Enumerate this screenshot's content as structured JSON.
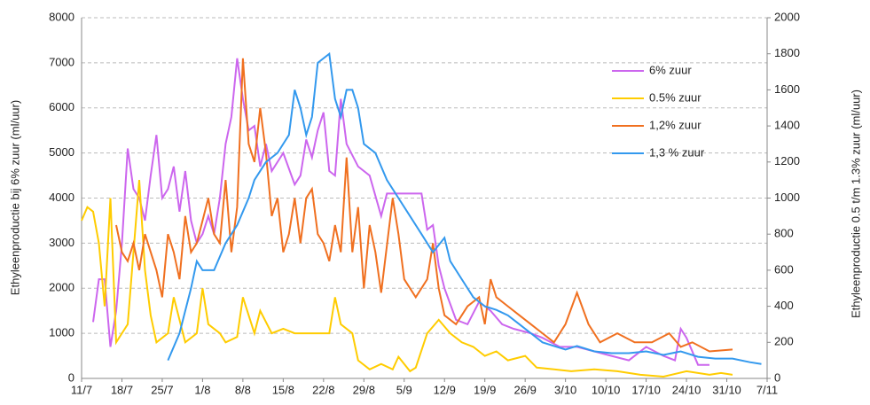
{
  "chart_data": {
    "type": "line",
    "y_label": "Ethyleenproductie bij 6% zuur (ml/uur)",
    "y2_label": "Ethyleenproductie 0.5 t/m 1.3% zuur (ml/uur)",
    "xlim": [
      "11/7",
      "7/11"
    ],
    "xticks": [
      "11/7",
      "18/7",
      "25/7",
      "1/8",
      "8/8",
      "15/8",
      "22/8",
      "29/8",
      "5/9",
      "12/9",
      "19/9",
      "26/9",
      "3/10",
      "10/10",
      "17/10",
      "24/10",
      "31/10",
      "7/11"
    ],
    "ylim": [
      0,
      8000
    ],
    "yticks": [
      0,
      1000,
      2000,
      3000,
      4000,
      5000,
      6000,
      7000,
      8000
    ],
    "y2lim": [
      0,
      2000
    ],
    "y2ticks": [
      0,
      200,
      400,
      600,
      800,
      1000,
      1200,
      1400,
      1600,
      1800,
      2000
    ],
    "grid": true,
    "series": [
      {
        "name": "6% zuur",
        "color": "#cc66ee",
        "x": [
          "13/7",
          "14/7",
          "15/7",
          "16/7",
          "17/7",
          "18/7",
          "19/7",
          "20/7",
          "21/7",
          "22/7",
          "23/7",
          "24/7",
          "25/7",
          "26/7",
          "27/7",
          "28/7",
          "29/7",
          "30/7",
          "31/7",
          "1/8",
          "2/8",
          "3/8",
          "4/8",
          "5/8",
          "6/8",
          "7/8",
          "8/8",
          "9/8",
          "10/8",
          "11/8",
          "12/8",
          "13/8",
          "15/8",
          "17/8",
          "18/8",
          "19/8",
          "20/8",
          "21/8",
          "22/8",
          "23/8",
          "24/8",
          "25/8",
          "26/8",
          "28/8",
          "30/8",
          "1/9",
          "2/9",
          "8/9",
          "9/9",
          "10/9",
          "11/9",
          "12/9",
          "14/9",
          "16/9",
          "18/9",
          "20/9",
          "22/9",
          "24/9",
          "27/9",
          "29/9",
          "2/10",
          "5/10",
          "8/10",
          "11/10",
          "14/10",
          "17/10",
          "20/10",
          "22/10",
          "23/10",
          "24/10",
          "26/10",
          "28/10"
        ],
        "values": [
          1250,
          2200,
          2200,
          700,
          1500,
          3000,
          5100,
          4200,
          4000,
          3500,
          4500,
          5400,
          4000,
          4200,
          4700,
          3700,
          4600,
          3500,
          3000,
          3200,
          3600,
          3200,
          4000,
          5200,
          5800,
          7100,
          6200,
          5500,
          5600,
          4700,
          5200,
          4600,
          5000,
          4300,
          4500,
          5300,
          4900,
          5500,
          5900,
          4600,
          4500,
          6200,
          5200,
          4700,
          4500,
          3600,
          4100,
          4100,
          3300,
          3400,
          2500,
          2000,
          1300,
          1200,
          1700,
          1500,
          1200,
          1100,
          1000,
          900,
          700,
          700,
          600,
          500,
          400,
          700,
          500,
          400,
          1100,
          900,
          300,
          300
        ]
      },
      {
        "name": "0.5% zuur",
        "color": "#ffcc00",
        "axis": "y2",
        "x": [
          "11/7",
          "12/7",
          "13/7",
          "14/7",
          "15/7",
          "16/7",
          "17/7",
          "18/7",
          "19/7",
          "21/7",
          "22/7",
          "23/7",
          "24/7",
          "26/7",
          "27/7",
          "29/7",
          "31/7",
          "1/8",
          "2/8",
          "4/8",
          "5/8",
          "7/8",
          "8/8",
          "10/8",
          "11/8",
          "13/8",
          "15/8",
          "17/8",
          "18/8",
          "20/8",
          "23/8",
          "24/8",
          "25/8",
          "27/8",
          "28/8",
          "30/8",
          "1/9",
          "3/9",
          "4/9",
          "6/9",
          "7/9",
          "9/9",
          "11/9",
          "13/9",
          "15/9",
          "17/9",
          "19/9",
          "21/9",
          "23/9",
          "26/9",
          "28/9",
          "1/10",
          "4/10",
          "8/10",
          "12/10",
          "16/10",
          "20/10",
          "24/10",
          "28/10",
          "30/10",
          "1/11"
        ],
        "values": [
          875,
          950,
          925,
          750,
          400,
          1000,
          200,
          250,
          300,
          1100,
          600,
          350,
          200,
          250,
          450,
          200,
          250,
          500,
          300,
          250,
          200,
          230,
          450,
          250,
          375,
          250,
          275,
          250,
          250,
          250,
          250,
          450,
          300,
          250,
          100,
          50,
          80,
          50,
          120,
          40,
          60,
          250,
          325,
          250,
          200,
          175,
          125,
          150,
          100,
          125,
          60,
          50,
          40,
          50,
          40,
          20,
          10,
          40,
          20,
          30,
          20
        ]
      },
      {
        "name": "1,2% zuur",
        "color": "#f07020",
        "axis": "y2",
        "x": [
          "17/7",
          "18/7",
          "19/7",
          "20/7",
          "21/7",
          "22/7",
          "24/7",
          "25/7",
          "26/7",
          "27/7",
          "28/7",
          "29/7",
          "30/7",
          "31/7",
          "2/8",
          "3/8",
          "4/8",
          "5/8",
          "6/8",
          "7/8",
          "8/8",
          "9/8",
          "10/8",
          "11/8",
          "12/8",
          "13/8",
          "14/8",
          "15/8",
          "16/8",
          "17/8",
          "18/8",
          "19/8",
          "20/8",
          "21/8",
          "22/8",
          "23/8",
          "24/8",
          "25/8",
          "26/8",
          "27/8",
          "28/8",
          "29/8",
          "30/8",
          "31/8",
          "1/9",
          "3/9",
          "4/9",
          "5/9",
          "7/9",
          "9/9",
          "10/9",
          "11/9",
          "12/9",
          "14/9",
          "16/9",
          "18/9",
          "19/9",
          "20/9",
          "21/9",
          "23/9",
          "25/9",
          "27/9",
          "29/9",
          "1/10",
          "3/10",
          "5/10",
          "7/10",
          "9/10",
          "12/10",
          "15/10",
          "18/10",
          "21/10",
          "23/10",
          "25/10",
          "28/10",
          "1/11"
        ],
        "values": [
          850,
          700,
          650,
          750,
          600,
          800,
          600,
          450,
          800,
          700,
          550,
          900,
          700,
          750,
          1000,
          800,
          750,
          1100,
          700,
          950,
          1775,
          1300,
          1200,
          1500,
          1250,
          900,
          1000,
          700,
          800,
          1000,
          750,
          1000,
          1050,
          800,
          750,
          650,
          850,
          700,
          1225,
          700,
          950,
          500,
          850,
          700,
          475,
          1000,
          800,
          550,
          450,
          550,
          750,
          500,
          350,
          300,
          400,
          450,
          300,
          550,
          450,
          400,
          350,
          300,
          250,
          200,
          300,
          475,
          300,
          200,
          250,
          200,
          200,
          250,
          175,
          200,
          150,
          160
        ]
      },
      {
        "name": "1,3 % zuur",
        "color": "#3399ee",
        "axis": "y2",
        "x": [
          "26/7",
          "28/7",
          "30/7",
          "31/7",
          "1/8",
          "3/8",
          "5/8",
          "7/8",
          "9/8",
          "10/8",
          "12/8",
          "14/8",
          "16/8",
          "17/8",
          "18/8",
          "19/8",
          "20/8",
          "21/8",
          "23/8",
          "24/8",
          "25/8",
          "26/8",
          "27/8",
          "28/8",
          "29/8",
          "31/8",
          "2/9",
          "4/9",
          "6/9",
          "8/9",
          "10/9",
          "12/9",
          "13/9",
          "15/9",
          "17/9",
          "19/9",
          "21/9",
          "23/9",
          "25/9",
          "27/9",
          "29/9",
          "1/10",
          "3/10",
          "5/10",
          "8/10",
          "11/10",
          "14/10",
          "17/10",
          "20/10",
          "23/10",
          "26/10",
          "29/10",
          "1/11",
          "4/11",
          "6/11"
        ],
        "values": [
          100,
          250,
          500,
          650,
          600,
          600,
          750,
          850,
          1000,
          1100,
          1200,
          1250,
          1350,
          1600,
          1500,
          1350,
          1450,
          1750,
          1800,
          1550,
          1450,
          1600,
          1600,
          1500,
          1300,
          1250,
          1100,
          1000,
          900,
          800,
          700,
          780,
          650,
          550,
          450,
          400,
          380,
          350,
          300,
          250,
          200,
          180,
          160,
          180,
          150,
          140,
          140,
          150,
          130,
          150,
          120,
          110,
          110,
          90,
          80
        ]
      }
    ]
  }
}
